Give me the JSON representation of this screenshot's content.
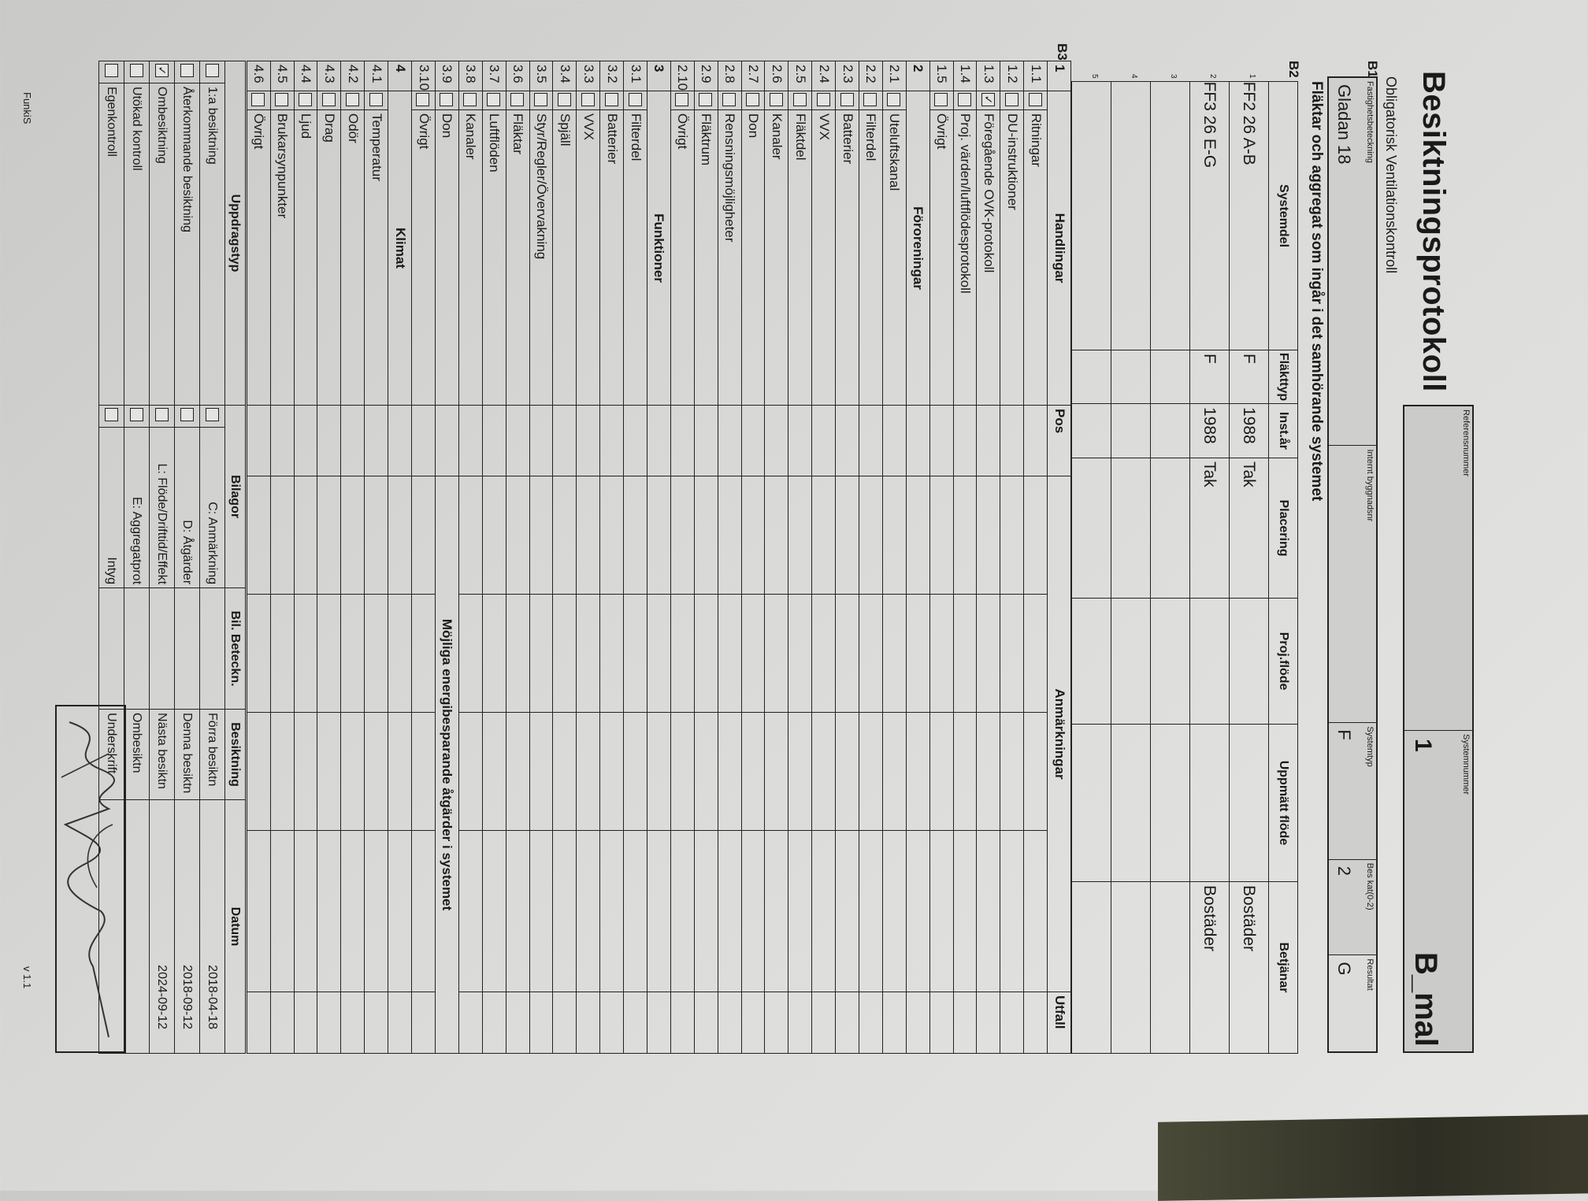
{
  "header": {
    "title": "Besiktningsprotokoll",
    "ref_label": "Referensnummer",
    "ref_value": "",
    "sysnum_label": "Systemnummer",
    "sysnum_value": "1",
    "template": "B_mal",
    "subtitle": "Obligatorisk Ventilationskontroll"
  },
  "b1": {
    "label": "B1",
    "fields": [
      {
        "label": "Fastighetsbeteckning",
        "value": "Gladan 18"
      },
      {
        "label": "Internt byggnadsnr",
        "value": ""
      },
      {
        "label": "Systemtyp",
        "value": "F"
      },
      {
        "label": "Bes kat(0-2)",
        "value": "2"
      },
      {
        "label": "Resultat",
        "value": "G"
      }
    ]
  },
  "b2": {
    "label": "B2",
    "heading": "Fläktar och aggregat som ingår i det samhörande systemet",
    "columns": [
      "Systemdel",
      "Fläkttyp",
      "Inst.år",
      "Placering",
      "Proj.flöde",
      "Uppmätt flöde",
      "Betjänar"
    ],
    "rows": [
      {
        "n": "1",
        "cells": [
          "FF2   26 A-B",
          "F",
          "1988",
          "Tak",
          "",
          "",
          "Bostäder"
        ]
      },
      {
        "n": "2",
        "cells": [
          "FF3   26 E-G",
          "F",
          "1988",
          "Tak",
          "",
          "",
          "Bostäder"
        ]
      },
      {
        "n": "3",
        "cells": [
          "",
          "",
          "",
          "",
          "",
          "",
          ""
        ]
      },
      {
        "n": "4",
        "cells": [
          "",
          "",
          "",
          "",
          "",
          "",
          ""
        ]
      },
      {
        "n": "5",
        "cells": [
          "",
          "",
          "",
          "",
          "",
          "",
          ""
        ]
      }
    ]
  },
  "b3": {
    "label": "B3",
    "col_pos": "Pos",
    "col_notes": "Anmärkningar",
    "col_outcome": "Utfall",
    "energy_heading": "Möjliga energibesparande åtgärder i systemet",
    "sections": [
      {
        "n": "1",
        "title": "Handlingar",
        "items": [
          {
            "n": "1.1",
            "label": "Ritningar",
            "checked": false
          },
          {
            "n": "1.2",
            "label": "DU-instruktioner",
            "checked": false
          },
          {
            "n": "1.3",
            "label": "Föregående OVK-protokoll",
            "checked": true
          },
          {
            "n": "1.4",
            "label": "Proj. värden/luftflödesprotokoll",
            "checked": false
          },
          {
            "n": "1.5",
            "label": "Övrigt",
            "checked": false
          }
        ]
      },
      {
        "n": "2",
        "title": "Föroreningar",
        "items": [
          {
            "n": "2.1",
            "label": "Uteluftskanal",
            "checked": false
          },
          {
            "n": "2.2",
            "label": "Filterdel",
            "checked": false
          },
          {
            "n": "2.3",
            "label": "Batterier",
            "checked": false
          },
          {
            "n": "2.4",
            "label": "VVX",
            "checked": false
          },
          {
            "n": "2.5",
            "label": "Fläktdel",
            "checked": false
          },
          {
            "n": "2.6",
            "label": "Kanaler",
            "checked": false
          },
          {
            "n": "2.7",
            "label": "Don",
            "checked": false
          },
          {
            "n": "2.8",
            "label": "Rensningsmöjligheter",
            "checked": false
          },
          {
            "n": "2.9",
            "label": "Fläktrum",
            "checked": false
          },
          {
            "n": "2.10",
            "label": "Övrigt",
            "checked": false
          }
        ]
      },
      {
        "n": "3",
        "title": "Funktioner",
        "items": [
          {
            "n": "3.1",
            "label": "Filterdel",
            "checked": false
          },
          {
            "n": "3.2",
            "label": "Batterier",
            "checked": false
          },
          {
            "n": "3.3",
            "label": "VVX",
            "checked": false
          },
          {
            "n": "3.4",
            "label": "Spjäll",
            "checked": false
          },
          {
            "n": "3.5",
            "label": "Styr/Regler/Övervakning",
            "checked": false
          },
          {
            "n": "3.6",
            "label": "Fläktar",
            "checked": false
          },
          {
            "n": "3.7",
            "label": "Luftflöden",
            "checked": false
          },
          {
            "n": "3.8",
            "label": "Kanaler",
            "checked": false
          },
          {
            "n": "3.9",
            "label": "Don",
            "checked": false
          },
          {
            "n": "3.10",
            "label": "Övrigt",
            "checked": false
          }
        ]
      },
      {
        "n": "4",
        "title": "Klimat",
        "items": [
          {
            "n": "4.1",
            "label": "Temperatur",
            "checked": false
          },
          {
            "n": "4.2",
            "label": "Odör",
            "checked": false
          },
          {
            "n": "4.3",
            "label": "Drag",
            "checked": false
          },
          {
            "n": "4.4",
            "label": "Ljud",
            "checked": false
          },
          {
            "n": "4.5",
            "label": "Brukarsynpunkter",
            "checked": false
          },
          {
            "n": "4.6",
            "label": "Övrigt",
            "checked": false
          }
        ]
      }
    ]
  },
  "assignment": {
    "columns": [
      "Uppdragstyp",
      "Bilagor",
      "Bil. Beteckn.",
      "Besiktning",
      "Datum"
    ],
    "rows": [
      {
        "type": "1:a besiktning",
        "type_checked": false,
        "attachment": "C: Anmärkning",
        "att_checked": false,
        "inspection": "Förra besiktn",
        "date": "2018-04-18"
      },
      {
        "type": "Återkommande besiktning",
        "type_checked": false,
        "attachment": "D: Åtgärder",
        "att_checked": false,
        "inspection": "Denna besiktn",
        "date": "2018-09-12"
      },
      {
        "type": "Ombesiktning",
        "type_checked": true,
        "attachment": "L: Flöde/Drifttid/Effekt",
        "att_checked": false,
        "inspection": "Nästa besiktn",
        "date": "2024-09-12"
      },
      {
        "type": "Utökad kontroll",
        "type_checked": false,
        "attachment": "E: Aggregatprot",
        "att_checked": false,
        "inspection": "Ombesiktn",
        "date": ""
      },
      {
        "type": "Egenkontroll",
        "type_checked": false,
        "attachment": "Intyg",
        "att_checked": false,
        "inspection": "Underskrift",
        "date": ""
      }
    ]
  },
  "footer": {
    "brand": "FunkiS",
    "version": "v 1.1"
  },
  "colors": {
    "paper": "#d9d9d7",
    "ink": "#1a1a1a",
    "shaded_field": "#cbcbc9"
  }
}
